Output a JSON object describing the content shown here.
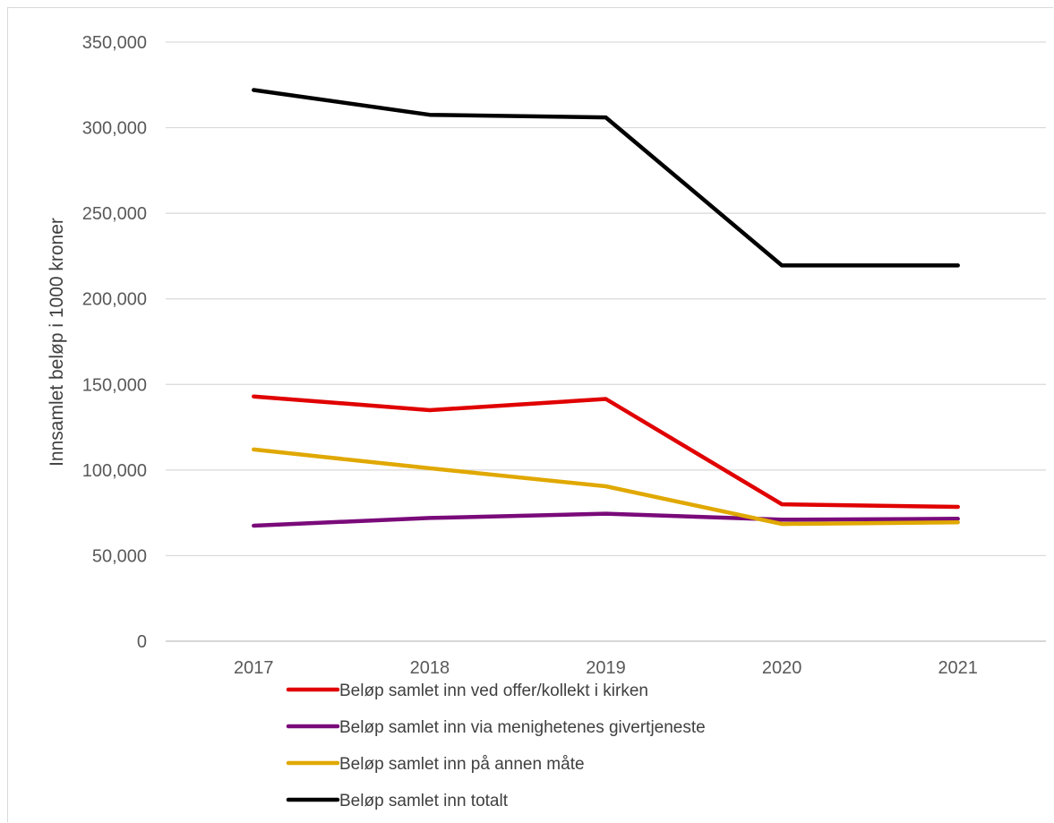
{
  "chart_data": {
    "type": "line",
    "title": "",
    "xlabel": "",
    "ylabel": "Innsamlet beløp i 1000 kroner",
    "categories": [
      "2017",
      "2018",
      "2019",
      "2020",
      "2021"
    ],
    "ylim": [
      0,
      350000
    ],
    "yticks": [
      0,
      50000,
      100000,
      150000,
      200000,
      250000,
      300000,
      350000
    ],
    "ytick_labels": [
      "0",
      "50,000",
      "100,000",
      "150,000",
      "200,000",
      "250,000",
      "300,000",
      "350,000"
    ],
    "grid": true,
    "legend_position": "bottom",
    "series": [
      {
        "name": "Beløp samlet inn ved offer/kollekt i kirken",
        "color": "#e00000",
        "values": [
          143000,
          135000,
          141500,
          80000,
          78500
        ]
      },
      {
        "name": "Beløp samlet inn via menighetenes givertjeneste",
        "color": "#7a0a7a",
        "values": [
          67500,
          72000,
          74500,
          71000,
          71500
        ]
      },
      {
        "name": "Beløp samlet inn på annen måte",
        "color": "#e0a800",
        "values": [
          112000,
          101000,
          90500,
          68500,
          69500
        ]
      },
      {
        "name": "Beløp samlet inn totalt",
        "color": "#000000",
        "values": [
          322000,
          307500,
          306000,
          219500,
          219500
        ]
      }
    ]
  }
}
